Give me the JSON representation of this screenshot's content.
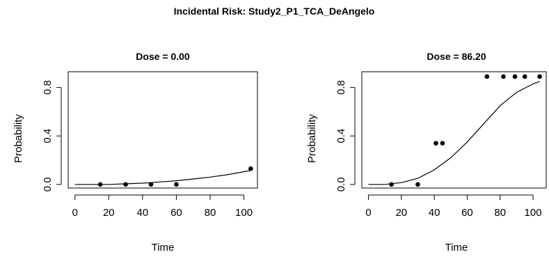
{
  "figure": {
    "title": "Incidental Risk: Study2_P1_TCA_DeAngelo"
  },
  "chart_data": [
    {
      "type": "scatter",
      "title": "Dose = 0.00",
      "xlabel": "Time",
      "ylabel": "Probability",
      "xlim": [
        -4,
        108
      ],
      "ylim": [
        -0.03,
        0.93
      ],
      "xticks": [
        0,
        20,
        40,
        60,
        80,
        100
      ],
      "yticks": [
        0.0,
        0.4,
        0.8
      ],
      "ytick_labels": [
        "0.0",
        "0.4",
        "0.8"
      ],
      "grid": false,
      "points": {
        "x": [
          15,
          30,
          45,
          60,
          104
        ],
        "y": [
          0.0,
          0.0,
          0.0,
          0.0,
          0.13
        ]
      },
      "curve": {
        "x": [
          0,
          10,
          20,
          30,
          40,
          50,
          60,
          70,
          80,
          90,
          100,
          104
        ],
        "y": [
          0.0,
          0.0,
          0.0,
          0.005,
          0.01,
          0.02,
          0.03,
          0.045,
          0.06,
          0.08,
          0.105,
          0.115
        ]
      }
    },
    {
      "type": "scatter",
      "title": "Dose = 86.20",
      "xlabel": "Time",
      "ylabel": "Probability",
      "xlim": [
        -4,
        108
      ],
      "ylim": [
        -0.03,
        0.93
      ],
      "xticks": [
        0,
        20,
        40,
        60,
        80,
        100
      ],
      "yticks": [
        0.0,
        0.4,
        0.8
      ],
      "ytick_labels": [
        "0.0",
        "0.4",
        "0.8"
      ],
      "grid": false,
      "points": {
        "x": [
          14,
          30,
          41,
          45,
          72,
          82,
          89,
          95,
          104
        ],
        "y": [
          0.0,
          0.0,
          0.34,
          0.34,
          0.89,
          0.89,
          0.89,
          0.89,
          0.89
        ]
      },
      "curve": {
        "x": [
          0,
          10,
          20,
          30,
          40,
          50,
          60,
          70,
          80,
          90,
          100,
          104
        ],
        "y": [
          0.0,
          0.0,
          0.015,
          0.05,
          0.12,
          0.22,
          0.35,
          0.5,
          0.65,
          0.76,
          0.83,
          0.85
        ]
      }
    }
  ]
}
